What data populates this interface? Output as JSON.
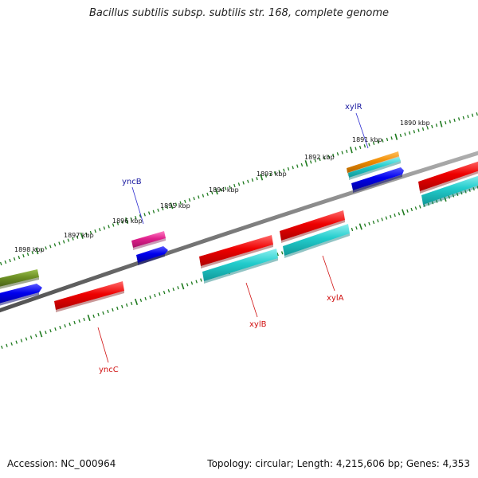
{
  "title": "Bacillus subtilis subsp. subtilis str. 168, complete genome",
  "footer": {
    "accession_label": "Accession:",
    "accession_value": "NC_000964",
    "topology_label": "Topology:",
    "topology_value": "circular",
    "length_label": "Length:",
    "length_value": "4,215,606 bp",
    "genes_label": "Genes:",
    "genes_value": "4,353"
  },
  "colors": {
    "backbone": "#808080",
    "tick": "#1e7a1e",
    "forward_label": "#1a1aa0",
    "reverse_label": "#d01010",
    "leader": "#2a2ad0",
    "red": "#ee0000",
    "cyan": "#22cccc",
    "blue": "#0000ee",
    "magenta": "#e0208c",
    "orange": "#f08c00",
    "olive": "#6b8e23"
  },
  "scale_labels": [
    {
      "text": "1890 kbp",
      "kbp": 1890
    },
    {
      "text": "1891 kbp",
      "kbp": 1891
    },
    {
      "text": "1892 kbp",
      "kbp": 1892
    },
    {
      "text": "1893 kbp",
      "kbp": 1893
    },
    {
      "text": "1894 kbp",
      "kbp": 1894
    },
    {
      "text": "1895 kbp",
      "kbp": 1895
    },
    {
      "text": "1896 kbp",
      "kbp": 1896
    },
    {
      "text": "1897 kbp",
      "kbp": 1897
    },
    {
      "text": "1898 kbp",
      "kbp": 1898
    }
  ],
  "gene_labels": [
    {
      "text": "xylR",
      "strand": "forward"
    },
    {
      "text": "yncB",
      "strand": "forward"
    },
    {
      "text": "xylA",
      "strand": "reverse"
    },
    {
      "text": "xylB",
      "strand": "reverse"
    },
    {
      "text": "yncC",
      "strand": "reverse"
    }
  ]
}
